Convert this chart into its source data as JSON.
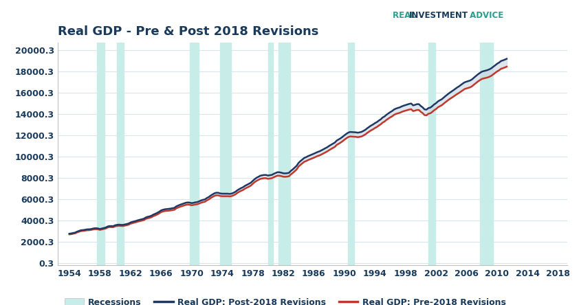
{
  "title": "Real GDP - Pre & Post 2018 Revisions",
  "background_color": "#ffffff",
  "plot_bg_color": "#ffffff",
  "title_color": "#1a3a5c",
  "title_fontsize": 13,
  "ylabel_ticks": [
    "0.3",
    "2000.3",
    "4000.3",
    "6000.3",
    "8000.3",
    "10000.3",
    "12000.3",
    "14000.3",
    "16000.3",
    "18000.3",
    "20000.3"
  ],
  "ytick_values": [
    0.3,
    2000.3,
    4000.3,
    6000.3,
    8000.3,
    10000.3,
    12000.3,
    14000.3,
    16000.3,
    18000.3,
    20000.3
  ],
  "xtick_values": [
    1954,
    1958,
    1962,
    1966,
    1970,
    1974,
    1978,
    1982,
    1986,
    1990,
    1994,
    1998,
    2002,
    2006,
    2010,
    2014,
    2018
  ],
  "xlim": [
    1952.5,
    2019.2
  ],
  "ylim": [
    -200,
    20700
  ],
  "post_color": "#1f3864",
  "pre_color": "#c0392b",
  "fill_color": "#c8d4e0",
  "fill_alpha": 0.6,
  "recession_color": "#c8ede8",
  "recession_alpha": 1.0,
  "recession_bands": [
    [
      1957.6,
      1958.6
    ],
    [
      1960.2,
      1961.1
    ],
    [
      1969.75,
      1970.9
    ],
    [
      1973.75,
      1975.2
    ],
    [
      1980.0,
      1980.7
    ],
    [
      1981.4,
      1982.9
    ],
    [
      1990.5,
      1991.3
    ],
    [
      2001.0,
      2001.9
    ],
    [
      2007.75,
      2009.5
    ]
  ],
  "years": [
    1954.0,
    1954.25,
    1954.5,
    1954.75,
    1955.0,
    1955.25,
    1955.5,
    1955.75,
    1956.0,
    1956.25,
    1956.5,
    1956.75,
    1957.0,
    1957.25,
    1957.5,
    1957.75,
    1958.0,
    1958.25,
    1958.5,
    1958.75,
    1959.0,
    1959.25,
    1959.5,
    1959.75,
    1960.0,
    1960.25,
    1960.5,
    1960.75,
    1961.0,
    1961.25,
    1961.5,
    1961.75,
    1962.0,
    1962.25,
    1962.5,
    1962.75,
    1963.0,
    1963.25,
    1963.5,
    1963.75,
    1964.0,
    1964.25,
    1964.5,
    1964.75,
    1965.0,
    1965.25,
    1965.5,
    1965.75,
    1966.0,
    1966.25,
    1966.5,
    1966.75,
    1967.0,
    1967.25,
    1967.5,
    1967.75,
    1968.0,
    1968.25,
    1968.5,
    1968.75,
    1969.0,
    1969.25,
    1969.5,
    1969.75,
    1970.0,
    1970.25,
    1970.5,
    1970.75,
    1971.0,
    1971.25,
    1971.5,
    1971.75,
    1972.0,
    1972.25,
    1972.5,
    1972.75,
    1973.0,
    1973.25,
    1973.5,
    1973.75,
    1974.0,
    1974.25,
    1974.5,
    1974.75,
    1975.0,
    1975.25,
    1975.5,
    1975.75,
    1976.0,
    1976.25,
    1976.5,
    1976.75,
    1977.0,
    1977.25,
    1977.5,
    1977.75,
    1978.0,
    1978.25,
    1978.5,
    1978.75,
    1979.0,
    1979.25,
    1979.5,
    1979.75,
    1980.0,
    1980.25,
    1980.5,
    1980.75,
    1981.0,
    1981.25,
    1981.5,
    1981.75,
    1982.0,
    1982.25,
    1982.5,
    1982.75,
    1983.0,
    1983.25,
    1983.5,
    1983.75,
    1984.0,
    1984.25,
    1984.5,
    1984.75,
    1985.0,
    1985.25,
    1985.5,
    1985.75,
    1986.0,
    1986.25,
    1986.5,
    1986.75,
    1987.0,
    1987.25,
    1987.5,
    1987.75,
    1988.0,
    1988.25,
    1988.5,
    1988.75,
    1989.0,
    1989.25,
    1989.5,
    1989.75,
    1990.0,
    1990.25,
    1990.5,
    1990.75,
    1991.0,
    1991.25,
    1991.5,
    1991.75,
    1992.0,
    1992.25,
    1992.5,
    1992.75,
    1993.0,
    1993.25,
    1993.5,
    1993.75,
    1994.0,
    1994.25,
    1994.5,
    1994.75,
    1995.0,
    1995.25,
    1995.5,
    1995.75,
    1996.0,
    1996.25,
    1996.5,
    1996.75,
    1997.0,
    1997.25,
    1997.5,
    1997.75,
    1998.0,
    1998.25,
    1998.5,
    1998.75,
    1999.0,
    1999.25,
    1999.5,
    1999.75,
    2000.0,
    2000.25,
    2000.5,
    2000.75,
    2001.0,
    2001.25,
    2001.5,
    2001.75,
    2002.0,
    2002.25,
    2002.5,
    2002.75,
    2003.0,
    2003.25,
    2003.5,
    2003.75,
    2004.0,
    2004.25,
    2004.5,
    2004.75,
    2005.0,
    2005.25,
    2005.5,
    2005.75,
    2006.0,
    2006.25,
    2006.5,
    2006.75,
    2007.0,
    2007.25,
    2007.5,
    2007.75,
    2008.0,
    2008.25,
    2008.5,
    2008.75,
    2009.0,
    2009.25,
    2009.5,
    2009.75,
    2010.0,
    2010.25,
    2010.5,
    2010.75,
    2011.0,
    2011.25,
    2011.5,
    2011.75,
    2012.0,
    2012.25,
    2012.5,
    2012.75,
    2013.0,
    2013.25,
    2013.5,
    2013.75,
    2014.0,
    2014.25,
    2014.5,
    2014.75,
    2015.0,
    2015.25,
    2015.5,
    2015.75,
    2016.0,
    2016.25,
    2016.5,
    2016.75,
    2017.0,
    2017.25,
    2017.5,
    2017.75,
    2018.0
  ],
  "post_2018": [
    2776,
    2796,
    2839,
    2874,
    2964,
    3032,
    3093,
    3111,
    3130,
    3173,
    3181,
    3196,
    3237,
    3278,
    3286,
    3268,
    3213,
    3256,
    3296,
    3348,
    3445,
    3491,
    3491,
    3484,
    3567,
    3603,
    3622,
    3602,
    3596,
    3635,
    3679,
    3726,
    3824,
    3878,
    3932,
    3978,
    4040,
    4084,
    4122,
    4177,
    4290,
    4356,
    4400,
    4462,
    4567,
    4641,
    4729,
    4826,
    4956,
    5020,
    5063,
    5082,
    5096,
    5126,
    5166,
    5194,
    5339,
    5415,
    5492,
    5553,
    5619,
    5678,
    5706,
    5691,
    5641,
    5672,
    5717,
    5742,
    5820,
    5892,
    5953,
    5989,
    6124,
    6215,
    6350,
    6464,
    6569,
    6618,
    6612,
    6551,
    6529,
    6530,
    6535,
    6527,
    6506,
    6543,
    6616,
    6714,
    6853,
    6962,
    7059,
    7142,
    7268,
    7361,
    7456,
    7556,
    7728,
    7891,
    8021,
    8113,
    8215,
    8257,
    8285,
    8285,
    8229,
    8264,
    8291,
    8388,
    8471,
    8546,
    8537,
    8500,
    8443,
    8434,
    8450,
    8486,
    8674,
    8815,
    8982,
    9144,
    9415,
    9586,
    9737,
    9884,
    9959,
    10052,
    10126,
    10196,
    10280,
    10364,
    10444,
    10506,
    10595,
    10693,
    10796,
    10887,
    11010,
    11118,
    11222,
    11324,
    11514,
    11619,
    11727,
    11857,
    12004,
    12140,
    12256,
    12322,
    12308,
    12297,
    12286,
    12253,
    12286,
    12330,
    12424,
    12528,
    12674,
    12803,
    12928,
    13022,
    13148,
    13246,
    13383,
    13501,
    13672,
    13774,
    13930,
    14060,
    14182,
    14286,
    14427,
    14515,
    14577,
    14629,
    14717,
    14787,
    14846,
    14910,
    14958,
    14993,
    14817,
    14868,
    14930,
    14934,
    14763,
    14628,
    14438,
    14418,
    14564,
    14605,
    14742,
    14906,
    15022,
    15191,
    15299,
    15395,
    15547,
    15699,
    15837,
    15983,
    16103,
    16227,
    16357,
    16489,
    16601,
    16735,
    16867,
    16985,
    17048,
    17101,
    17165,
    17281,
    17441,
    17591,
    17740,
    17866,
    17982,
    18037,
    18080,
    18135,
    18206,
    18306,
    18449,
    18582,
    18729,
    18831,
    18980,
    19040,
    19110,
    19188
  ],
  "pre_2018": [
    2710,
    2730,
    2773,
    2808,
    2895,
    2960,
    3018,
    3035,
    3053,
    3094,
    3100,
    3114,
    3152,
    3192,
    3199,
    3183,
    3130,
    3170,
    3208,
    3257,
    3350,
    3394,
    3393,
    3386,
    3466,
    3500,
    3517,
    3498,
    3492,
    3529,
    3570,
    3614,
    3710,
    3762,
    3814,
    3858,
    3917,
    3959,
    3994,
    4047,
    4157,
    4221,
    4263,
    4322,
    4424,
    4495,
    4580,
    4673,
    4800,
    4861,
    4900,
    4916,
    4929,
    4957,
    4993,
    5018,
    5158,
    5231,
    5304,
    5361,
    5423,
    5478,
    5504,
    5490,
    5441,
    5471,
    5512,
    5535,
    5610,
    5679,
    5736,
    5769,
    5900,
    5988,
    6119,
    6229,
    6330,
    6376,
    6369,
    6309,
    6289,
    6291,
    6296,
    6289,
    6270,
    6307,
    6377,
    6471,
    6607,
    6711,
    6804,
    6883,
    7006,
    7095,
    7186,
    7282,
    7451,
    7609,
    7734,
    7820,
    7916,
    7955,
    7980,
    7978,
    7921,
    7953,
    7978,
    8071,
    8150,
    8221,
    8211,
    8175,
    8120,
    8112,
    8128,
    8163,
    8341,
    8478,
    8641,
    8800,
    9067,
    9234,
    9381,
    9524,
    9596,
    9685,
    9757,
    9824,
    9905,
    9987,
    10065,
    10123,
    10209,
    10305,
    10405,
    10493,
    10614,
    10720,
    10822,
    10922,
    11110,
    11213,
    11318,
    11446,
    11591,
    11724,
    11838,
    11902,
    11887,
    11874,
    11862,
    11830,
    11862,
    11903,
    11993,
    12093,
    12235,
    12360,
    12481,
    12571,
    12693,
    12787,
    12921,
    13035,
    13199,
    13297,
    13448,
    13574,
    13690,
    13790,
    13927,
    14012,
    14070,
    14119,
    14203,
    14270,
    14323,
    14382,
    14426,
    14456,
    14280,
    14326,
    14385,
    14388,
    14220,
    14090,
    13904,
    13884,
    14031,
    14070,
    14200,
    14359,
    14472,
    14636,
    14740,
    14833,
    14979,
    15125,
    15258,
    15398,
    15512,
    15629,
    15752,
    15877,
    15983,
    16108,
    16232,
    16356,
    16412,
    16462,
    16521,
    16631,
    16784,
    16927,
    17070,
    17190,
    17300,
    17351,
    17390,
    17440,
    17506,
    17600,
    17737,
    17866,
    18009,
    18108,
    18252,
    18309,
    18376,
    18452
  ],
  "legend_fontsize": 9,
  "tick_fontsize": 9,
  "line_width": 1.8,
  "border_color": "#c0c0c0",
  "grid_color": "#d8e4f0",
  "tick_color": "#1a3a5c"
}
